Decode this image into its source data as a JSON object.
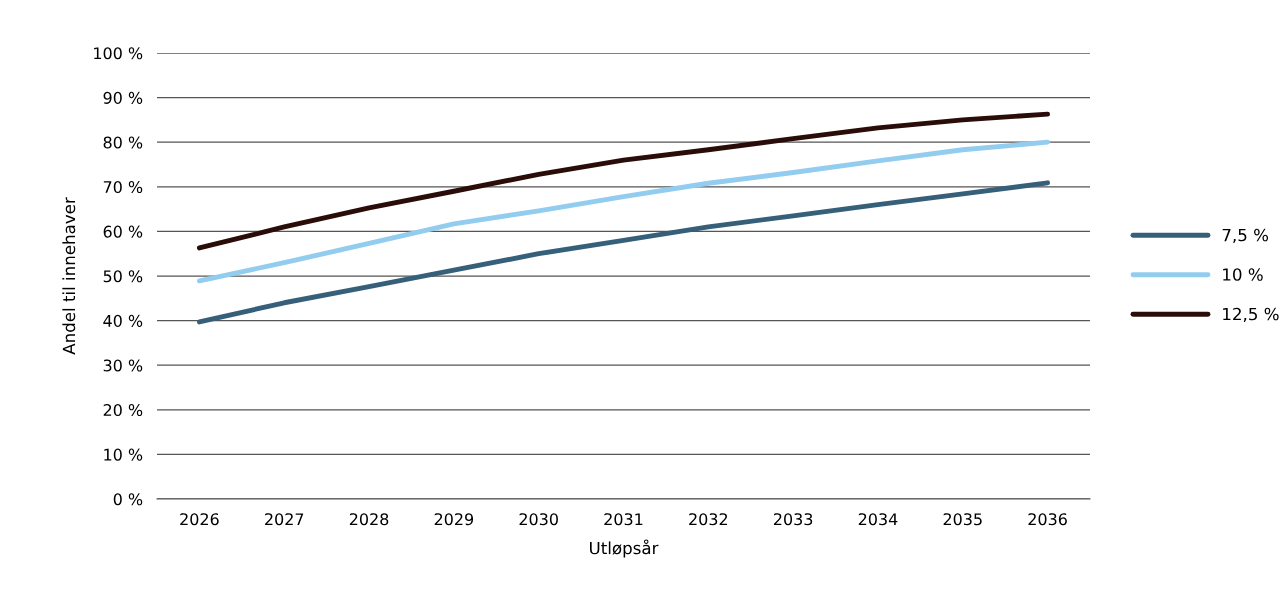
{
  "chart_data": {
    "type": "line",
    "xlabel": "Utløpsår",
    "ylabel": "Andel til innehaver",
    "categories": [
      "2026",
      "2027",
      "2028",
      "2029",
      "2030",
      "2031",
      "2032",
      "2033",
      "2034",
      "2035",
      "2036"
    ],
    "series": [
      {
        "name": "7,5 %",
        "color": "#365f7a",
        "values": [
          39.7,
          44,
          47.6,
          51.3,
          55,
          58,
          61,
          63.5,
          66,
          68.4,
          70.9
        ]
      },
      {
        "name": "10 %",
        "color": "#92cdef",
        "values": [
          48.9,
          53,
          57.3,
          61.7,
          64.6,
          67.8,
          70.8,
          73.2,
          75.8,
          78.3,
          80
        ]
      },
      {
        "name": "12,5 %",
        "color": "#2a0d09",
        "values": [
          56.3,
          61,
          65.3,
          69,
          72.8,
          76,
          78.3,
          80.8,
          83.2,
          85,
          86.3
        ]
      }
    ],
    "ylim": [
      0,
      100
    ],
    "yticks": [
      {
        "value": 0,
        "label": "0 %"
      },
      {
        "value": 10,
        "label": "10 %"
      },
      {
        "value": 20,
        "label": "20 %"
      },
      {
        "value": 30,
        "label": "30 %"
      },
      {
        "value": 40,
        "label": "40 %"
      },
      {
        "value": 50,
        "label": "50 %"
      },
      {
        "value": 60,
        "label": "60 %"
      },
      {
        "value": 70,
        "label": "70 %"
      },
      {
        "value": 80,
        "label": "80 %"
      },
      {
        "value": 90,
        "label": "90 %"
      },
      {
        "value": 100,
        "label": "100 %"
      }
    ],
    "grid": "y",
    "legend": "right",
    "marker": "none",
    "line_style": "solid"
  }
}
